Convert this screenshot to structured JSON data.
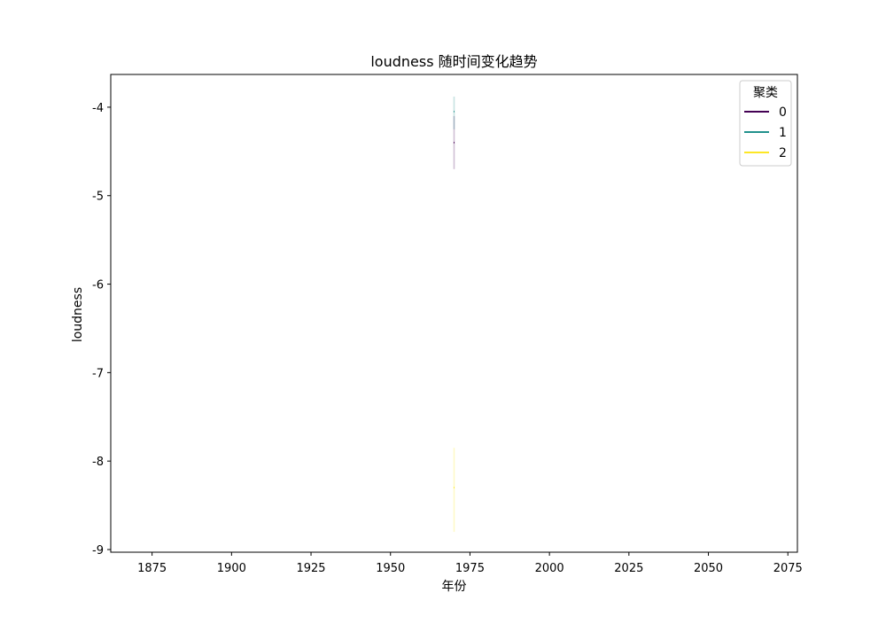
{
  "chart_data": {
    "type": "line",
    "title": "loudness 随时间变化趋势",
    "xlabel": "年份",
    "ylabel": "loudness",
    "xlim": [
      1862,
      2078
    ],
    "ylim": [
      -9.03,
      -3.63
    ],
    "xticks": [
      1875,
      1900,
      1925,
      1950,
      1975,
      2000,
      2025,
      2050,
      2075
    ],
    "yticks": [
      -9,
      -8,
      -7,
      -6,
      -5,
      -4
    ],
    "grid": false,
    "legend": {
      "title": "聚类",
      "placement": "upper-right"
    },
    "series": [
      {
        "name": "0",
        "color": "#440154",
        "x": [
          1970
        ],
        "y": [
          -4.4
        ],
        "band": [
          -4.7,
          -4.1
        ]
      },
      {
        "name": "1",
        "color": "#21918c",
        "x": [
          1970
        ],
        "y": [
          -4.05
        ],
        "band": [
          -4.25,
          -3.88
        ]
      },
      {
        "name": "2",
        "color": "#fde725",
        "x": [
          1970
        ],
        "y": [
          -8.3
        ],
        "band": [
          -8.8,
          -7.85
        ]
      }
    ]
  }
}
